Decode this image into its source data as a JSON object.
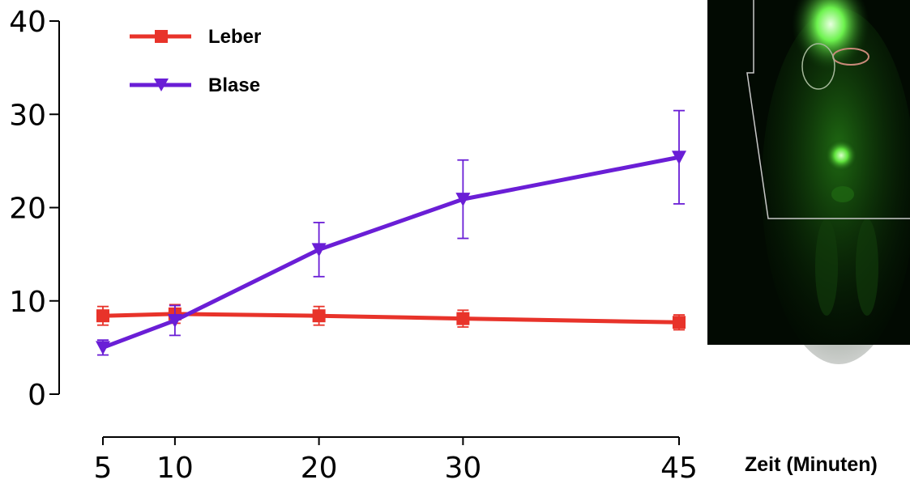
{
  "chart_data": {
    "type": "line",
    "title": "",
    "xlabel": "Zeit (Minuten)",
    "ylabel": "",
    "x": [
      5,
      10,
      20,
      30,
      45
    ],
    "xlim": [
      5,
      45
    ],
    "ylim": [
      0,
      40
    ],
    "x_ticks": [
      "5",
      "10",
      "20",
      "30",
      "45"
    ],
    "y_ticks": [
      "0",
      "10",
      "20",
      "30",
      "40"
    ],
    "grid": false,
    "legend_position": "top-left",
    "series": [
      {
        "name": "Leber",
        "color": "#e8332a",
        "marker": "square",
        "values": [
          8.4,
          8.6,
          8.4,
          8.1,
          7.7
        ],
        "errors": [
          1.0,
          1.0,
          1.0,
          0.9,
          0.8
        ]
      },
      {
        "name": "Blase",
        "color": "#6a1ed6",
        "marker": "triangle-down",
        "values": [
          5.0,
          7.9,
          15.5,
          20.9,
          25.4
        ],
        "errors": [
          0.8,
          1.6,
          2.9,
          4.2,
          5.0
        ]
      }
    ]
  },
  "image_panel": {
    "description_icon": "pet-scan-image"
  }
}
